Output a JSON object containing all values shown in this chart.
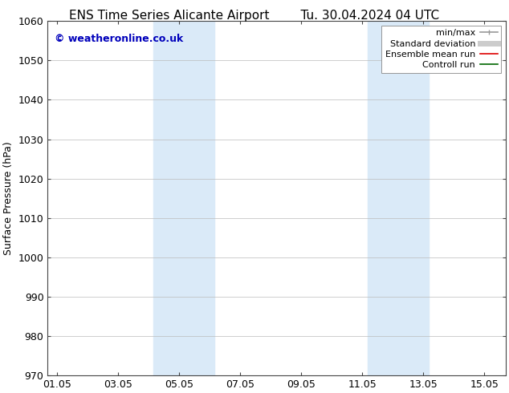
{
  "title_left": "ENS Time Series Alicante Airport",
  "title_right": "Tu. 30.04.2024 04 UTC",
  "ylabel": "Surface Pressure (hPa)",
  "ylim": [
    970,
    1060
  ],
  "yticks": [
    970,
    980,
    990,
    1000,
    1010,
    1020,
    1030,
    1040,
    1050,
    1060
  ],
  "xtick_labels": [
    "01.05",
    "03.05",
    "05.05",
    "07.05",
    "09.05",
    "11.05",
    "13.05",
    "15.05"
  ],
  "xtick_positions": [
    0,
    2,
    4,
    6,
    8,
    10,
    12,
    14
  ],
  "xlim": [
    -0.3,
    14.7
  ],
  "shaded_bands": [
    {
      "x_start": 3.17,
      "x_end": 5.17
    },
    {
      "x_start": 10.17,
      "x_end": 12.17
    }
  ],
  "shade_color": "#daeaf8",
  "background_color": "#ffffff",
  "plot_bg_color": "#f5f5f5",
  "watermark_text": "© weatheronline.co.uk",
  "watermark_color": "#0000bb",
  "watermark_fontsize": 9,
  "legend_entries": [
    {
      "label": "min/max",
      "color": "#999999",
      "linestyle": "-",
      "linewidth": 1.2
    },
    {
      "label": "Standard deviation",
      "color": "#cccccc",
      "linestyle": "-",
      "linewidth": 5
    },
    {
      "label": "Ensemble mean run",
      "color": "#dd0000",
      "linestyle": "-",
      "linewidth": 1.2
    },
    {
      "label": "Controll run",
      "color": "#006600",
      "linestyle": "-",
      "linewidth": 1.2
    }
  ],
  "grid_color": "#bbbbbb",
  "title_fontsize": 11,
  "axis_fontsize": 9,
  "tick_fontsize": 9,
  "legend_fontsize": 8
}
